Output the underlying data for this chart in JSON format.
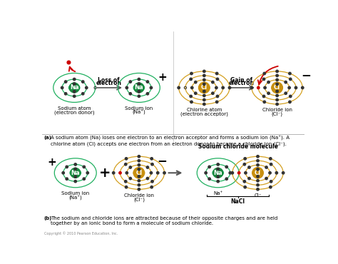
{
  "bg_color": "#ffffff",
  "na_nucleus_color": "#1a8a40",
  "cl_nucleus_color": "#c89010",
  "orbit_color_na": "#20b060",
  "orbit_color_cl": "#d4a020",
  "electron_color": "#333333",
  "electron_lost_color": "#cc0000",
  "text_color": "#000000",
  "title_a": "(a) A sodium atom (Na) loses one electron to an electron acceptor and forms a sodium ion (Na+). A\nchlorine atom (Cl) accepts one electron from an electron donor to become a chloride ion (Cl-).",
  "title_b": "(b) The sodium and chloride ions are attracted because of their opposite charges and are held\ntogether by an ionic bond to form a molecule of sodium chloride.",
  "copyright": "Copyright © 2010 Pearson Education, Inc."
}
